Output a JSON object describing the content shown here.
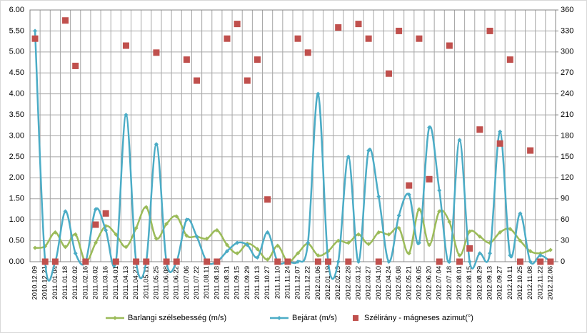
{
  "chart_data": {
    "type": "line",
    "categories": [
      "2010.12.09",
      "2010.12.21",
      "2011.01.04",
      "2011.01.18",
      "2011.02.02",
      "2011.02.16",
      "2011.03.02",
      "2011.03.16",
      "2011.04.01",
      "2011.04.13",
      "2011.04.27",
      "2011.05.11",
      "2011.05.25",
      "2011.06.08",
      "2011.06.22",
      "2011.07.06",
      "2011.07.22",
      "2011.08.11",
      "2011.08.18",
      "2011.08.31",
      "2011.09.15",
      "2011.09.29",
      "2011.10.13",
      "2011.10.27",
      "2011.11.10",
      "2011.11.24",
      "2011.12.07",
      "2011.12.22",
      "2012.01.06",
      "2012.01.19",
      "2012.02.13",
      "2012.02.28",
      "2012.03.12",
      "2012.03.27",
      "2012.04.10",
      "2012.04.24",
      "2012.05.08",
      "2012.05.21",
      "2012.06.05",
      "2012.06.20",
      "2012.07.04",
      "2012.07.18",
      "2012.08.01",
      "2012.08.15",
      "2012.08.29",
      "2012.09.13",
      "2012.09.27",
      "2012.10.11",
      "2012.10.25",
      "2012.11.08",
      "2012.11.22",
      "2012.12.06"
    ],
    "series": [
      {
        "name": "Barlangi szélsebesség (m/s)",
        "type": "line",
        "color": "#9bbb59",
        "values": [
          0.33,
          0.37,
          0.7,
          0.35,
          0.65,
          0,
          0.45,
          0.85,
          0.65,
          0.35,
          0.8,
          1.3,
          0.55,
          0.9,
          1.08,
          0.62,
          0.6,
          0.55,
          0.75,
          0.4,
          0.2,
          0.43,
          0.3,
          0.05,
          0.38,
          0,
          0.2,
          0.43,
          0.15,
          0.25,
          0.5,
          0.45,
          0.65,
          0.42,
          0.7,
          0.65,
          0.8,
          0.2,
          1.25,
          0.4,
          1.2,
          0.95,
          0.15,
          0.72,
          0.6,
          0.45,
          0.7,
          0.78,
          0.5,
          0.25,
          0.2,
          0.28
        ]
      },
      {
        "name": "Bejárat (m/s)",
        "type": "line",
        "color": "#4bacc6",
        "values": [
          5.5,
          0,
          0,
          1.2,
          0.2,
          0,
          1.25,
          0.75,
          0,
          3.5,
          0,
          0,
          2.8,
          0,
          0,
          1.0,
          0.6,
          0,
          0,
          0.25,
          0.45,
          0.4,
          0.1,
          0.7,
          0,
          0,
          0,
          0.45,
          4.0,
          0,
          0,
          2.5,
          0,
          2.65,
          1.55,
          0,
          1.1,
          1.6,
          0.45,
          3.2,
          1.7,
          0,
          2.9,
          0,
          0.2,
          0.2,
          3.1,
          0.15,
          1.15,
          0,
          0.15,
          0
        ]
      },
      {
        "name": "Szélirány - mágneses azimut(°)",
        "type": "scatter",
        "axis": "y2",
        "color": "#c0504d",
        "values": [
          319,
          0,
          0,
          345,
          280,
          0,
          53,
          69,
          0,
          309,
          0,
          0,
          299,
          0,
          0,
          289,
          259,
          0,
          0,
          319,
          340,
          259,
          289,
          89,
          0,
          0,
          319,
          299,
          0,
          0,
          335,
          0,
          340,
          319,
          0,
          269,
          330,
          109,
          319,
          118,
          0,
          309,
          0,
          19,
          189,
          330,
          169,
          289,
          0,
          159,
          0,
          0
        ]
      }
    ],
    "ylim": [
      0,
      6
    ],
    "yticks": [
      {
        "value": 0,
        "label": "0.00"
      },
      {
        "value": 0.5,
        "label": "0.50"
      },
      {
        "value": 1,
        "label": "1.00"
      },
      {
        "value": 1.5,
        "label": "1.50"
      },
      {
        "value": 2,
        "label": "2.00"
      },
      {
        "value": 2.5,
        "label": "2.50"
      },
      {
        "value": 3,
        "label": "3.00"
      },
      {
        "value": 3.5,
        "label": "3.50"
      },
      {
        "value": 4,
        "label": "4.00"
      },
      {
        "value": 4.5,
        "label": "4.50"
      },
      {
        "value": 5,
        "label": "5.00"
      },
      {
        "value": 5.5,
        "label": "5.50"
      },
      {
        "value": 6,
        "label": "6.00"
      }
    ],
    "y2lim": [
      0,
      360
    ],
    "y2ticks": [
      0,
      30,
      60,
      90,
      120,
      150,
      180,
      210,
      240,
      270,
      300,
      330,
      360
    ],
    "grid": true,
    "legend": "bottom"
  }
}
